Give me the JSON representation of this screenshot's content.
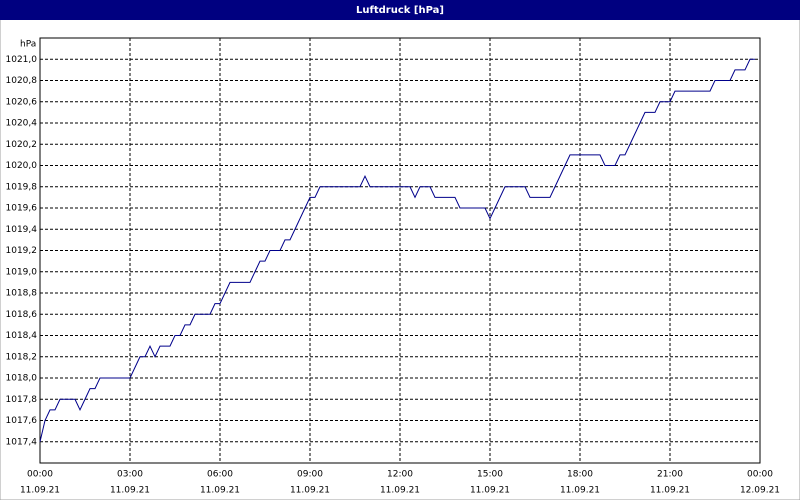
{
  "window": {
    "title": "Luftdruck [hPa]"
  },
  "chart_data": {
    "type": "line",
    "ylabel": "hPa",
    "x": [
      0,
      10,
      20,
      30,
      40,
      70,
      80,
      90,
      100,
      110,
      120,
      180,
      190,
      200,
      210,
      220,
      230,
      240,
      260,
      270,
      280,
      290,
      300,
      310,
      340,
      350,
      360,
      370,
      380,
      420,
      430,
      440,
      450,
      460,
      480,
      490,
      500,
      510,
      520,
      530,
      540,
      550,
      560,
      640,
      650,
      660,
      740,
      750,
      760,
      780,
      790,
      830,
      840,
      890,
      900,
      910,
      920,
      930,
      970,
      980,
      1020,
      1030,
      1040,
      1050,
      1060,
      1120,
      1130,
      1150,
      1160,
      1170,
      1180,
      1190,
      1200,
      1210,
      1230,
      1240,
      1260,
      1270,
      1340,
      1350,
      1380,
      1390,
      1410,
      1420,
      1430
    ],
    "series": [
      {
        "name": "Luftdruck",
        "color": "#00008b",
        "values": [
          1017.4,
          1017.6,
          1017.7,
          1017.7,
          1017.8,
          1017.8,
          1017.7,
          1017.8,
          1017.9,
          1017.9,
          1018.0,
          1018.0,
          1018.1,
          1018.2,
          1018.2,
          1018.3,
          1018.2,
          1018.3,
          1018.3,
          1018.4,
          1018.4,
          1018.5,
          1018.5,
          1018.6,
          1018.6,
          1018.7,
          1018.7,
          1018.8,
          1018.9,
          1018.9,
          1019.0,
          1019.1,
          1019.1,
          1019.2,
          1019.2,
          1019.3,
          1019.3,
          1019.4,
          1019.5,
          1019.6,
          1019.7,
          1019.7,
          1019.8,
          1019.8,
          1019.9,
          1019.8,
          1019.8,
          1019.7,
          1019.8,
          1019.8,
          1019.7,
          1019.7,
          1019.6,
          1019.6,
          1019.5,
          1019.6,
          1019.7,
          1019.8,
          1019.8,
          1019.7,
          1019.7,
          1019.8,
          1019.9,
          1020.0,
          1020.1,
          1020.1,
          1020.0,
          1020.0,
          1020.1,
          1020.1,
          1020.2,
          1020.3,
          1020.4,
          1020.5,
          1020.5,
          1020.6,
          1020.6,
          1020.7,
          1020.7,
          1020.8,
          1020.8,
          1020.9,
          1020.9,
          1021.0,
          1021.0
        ]
      }
    ],
    "xlim": [
      0,
      1440
    ],
    "xticks": [
      {
        "value": 0,
        "label": "00:00",
        "date": "11.09.21"
      },
      {
        "value": 180,
        "label": "03:00",
        "date": "11.09.21"
      },
      {
        "value": 360,
        "label": "06:00",
        "date": "11.09.21"
      },
      {
        "value": 540,
        "label": "09:00",
        "date": "11.09.21"
      },
      {
        "value": 720,
        "label": "12:00",
        "date": "11.09.21"
      },
      {
        "value": 900,
        "label": "15:00",
        "date": "11.09.21"
      },
      {
        "value": 1080,
        "label": "18:00",
        "date": "11.09.21"
      },
      {
        "value": 1260,
        "label": "21:00",
        "date": "11.09.21"
      },
      {
        "value": 1440,
        "label": "00:00",
        "date": "12.09.21"
      }
    ],
    "ylim": [
      1017.2,
      1021.2
    ],
    "yticks": [
      {
        "value": 1017.4,
        "label": "1017,4"
      },
      {
        "value": 1017.6,
        "label": "1017,6"
      },
      {
        "value": 1017.8,
        "label": "1017,8"
      },
      {
        "value": 1018.0,
        "label": "1018,0"
      },
      {
        "value": 1018.2,
        "label": "1018,2"
      },
      {
        "value": 1018.4,
        "label": "1018,4"
      },
      {
        "value": 1018.6,
        "label": "1018,6"
      },
      {
        "value": 1018.8,
        "label": "1018,8"
      },
      {
        "value": 1019.0,
        "label": "1019,0"
      },
      {
        "value": 1019.2,
        "label": "1019,2"
      },
      {
        "value": 1019.4,
        "label": "1019,4"
      },
      {
        "value": 1019.6,
        "label": "1019,6"
      },
      {
        "value": 1019.8,
        "label": "1019,8"
      },
      {
        "value": 1020.0,
        "label": "1020,0"
      },
      {
        "value": 1020.2,
        "label": "1020,2"
      },
      {
        "value": 1020.4,
        "label": "1020,4"
      },
      {
        "value": 1020.6,
        "label": "1020,6"
      },
      {
        "value": 1020.8,
        "label": "1020,8"
      },
      {
        "value": 1021.0,
        "label": "1021,0"
      }
    ],
    "grid": true
  }
}
